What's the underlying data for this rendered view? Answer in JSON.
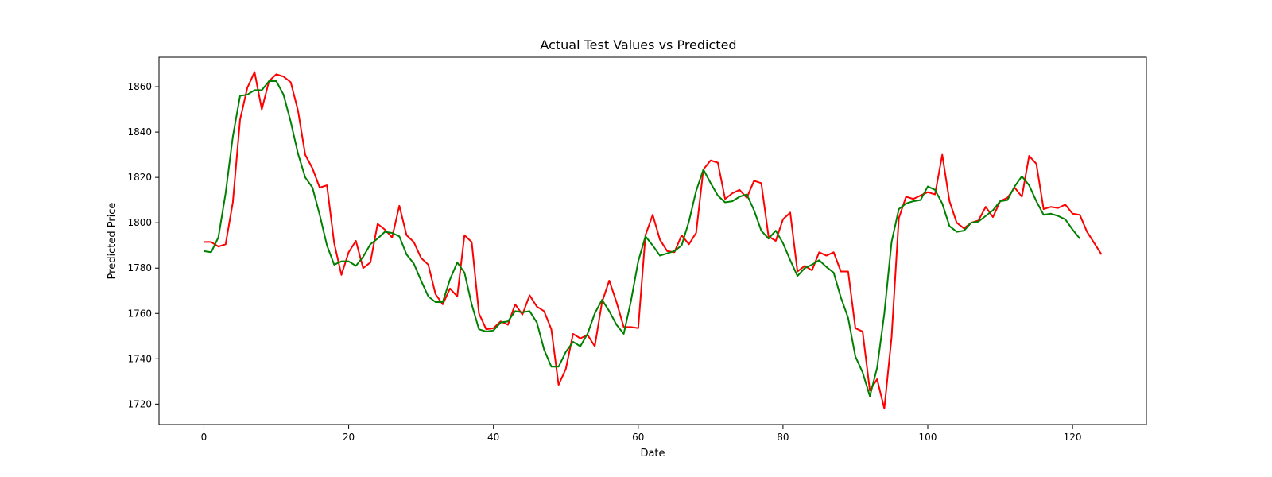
{
  "chart_data": {
    "type": "line",
    "title": "Actual Test Values vs Predicted",
    "xlabel": "Date",
    "ylabel": "Predicted Price",
    "xlim": [
      -6.2,
      130.2
    ],
    "ylim": [
      1711,
      1873
    ],
    "xticks": [
      0,
      20,
      40,
      60,
      80,
      100,
      120
    ],
    "yticks": [
      1720,
      1740,
      1760,
      1780,
      1800,
      1820,
      1840,
      1860
    ],
    "grid": false,
    "series": [
      {
        "color": "#ff0000",
        "x": [
          0,
          1,
          2,
          3,
          4,
          5,
          6,
          7,
          8,
          9,
          10,
          11,
          12,
          13,
          14,
          15,
          16,
          17,
          18,
          19,
          20,
          21,
          22,
          23,
          24,
          25,
          26,
          27,
          28,
          29,
          30,
          31,
          32,
          33,
          34,
          35,
          36,
          37,
          38,
          39,
          40,
          41,
          42,
          43,
          44,
          45,
          46,
          47,
          48,
          49,
          50,
          51,
          52,
          53,
          54,
          55,
          56,
          57,
          58,
          59,
          60,
          61,
          62,
          63,
          64,
          65,
          66,
          67,
          68,
          69,
          70,
          71,
          72,
          73,
          74,
          75,
          76,
          77,
          78,
          79,
          80,
          81,
          82,
          83,
          84,
          85,
          86,
          87,
          88,
          89,
          90,
          91,
          92,
          93,
          94,
          95,
          96,
          97,
          98,
          99,
          100,
          101,
          102,
          103,
          104,
          105,
          106,
          107,
          108,
          109,
          110,
          111,
          112,
          113,
          114,
          115,
          116,
          117,
          118,
          119,
          120,
          121,
          122,
          123,
          124
        ],
        "values": [
          1791.5,
          1791.5,
          1789.5,
          1790.5,
          1809,
          1845.5,
          1859.5,
          1866.5,
          1850,
          1862.5,
          1865.5,
          1864.5,
          1862,
          1849.5,
          1830,
          1824,
          1815.5,
          1816.5,
          1791,
          1777,
          1787,
          1792,
          1780,
          1782.5,
          1799.5,
          1797,
          1793.5,
          1807.5,
          1794.5,
          1791.5,
          1784.5,
          1781.5,
          1768.5,
          1764,
          1771,
          1767.5,
          1794.5,
          1791.5,
          1760,
          1753,
          1753.5,
          1756.5,
          1755,
          1764,
          1759.5,
          1768,
          1763,
          1761,
          1753,
          1728.5,
          1735.5,
          1751,
          1749,
          1750.5,
          1745.5,
          1765,
          1774.5,
          1765,
          1754,
          1754,
          1753.5,
          1794.5,
          1803.5,
          1792.5,
          1787.5,
          1787,
          1794.5,
          1790.5,
          1795.5,
          1823.5,
          1827.5,
          1826.5,
          1810.5,
          1813,
          1814.5,
          1811,
          1818.5,
          1817.5,
          1794,
          1792,
          1801.5,
          1804.5,
          1778.5,
          1781,
          1779,
          1787,
          1785.5,
          1787,
          1778.5,
          1778.5,
          1753.5,
          1752,
          1726,
          1731,
          1718,
          1749.5,
          1802,
          1811.5,
          1810.5,
          1812,
          1813.5,
          1812.5,
          1830,
          1809.5,
          1800,
          1797.5,
          1800,
          1801,
          1807,
          1802.5,
          1809.5,
          1811,
          1815.5,
          1811.5,
          1829.5,
          1826,
          1806,
          1807,
          1806.5,
          1808,
          1804,
          1803.5,
          1796,
          1791,
          1786
        ]
      },
      {
        "color": "#008000",
        "x": [
          0,
          1,
          2,
          3,
          4,
          5,
          6,
          7,
          8,
          9,
          10,
          11,
          12,
          13,
          14,
          15,
          16,
          17,
          18,
          19,
          20,
          21,
          22,
          23,
          24,
          25,
          26,
          27,
          28,
          29,
          30,
          31,
          32,
          33,
          34,
          35,
          36,
          37,
          38,
          39,
          40,
          41,
          42,
          43,
          44,
          45,
          46,
          47,
          48,
          49,
          50,
          51,
          52,
          53,
          54,
          55,
          56,
          57,
          58,
          59,
          60,
          61,
          62,
          63,
          64,
          65,
          66,
          67,
          68,
          69,
          70,
          71,
          72,
          73,
          74,
          75,
          76,
          77,
          78,
          79,
          80,
          81,
          82,
          83,
          84,
          85,
          86,
          87,
          88,
          89,
          90,
          91,
          92,
          93,
          94,
          95,
          96,
          97,
          98,
          99,
          100,
          101,
          102,
          103,
          104,
          105,
          106,
          107,
          108,
          109,
          110,
          111,
          112,
          113,
          114,
          115,
          116,
          117,
          118,
          119,
          120,
          121
        ],
        "values": [
          1787.5,
          1787,
          1793.5,
          1813,
          1838,
          1856,
          1856.5,
          1858.5,
          1858.5,
          1862.5,
          1862.5,
          1856.5,
          1844.5,
          1830.5,
          1820,
          1815.5,
          1803.5,
          1790,
          1781.5,
          1783,
          1783,
          1781,
          1785,
          1790.5,
          1793,
          1796,
          1795.5,
          1794,
          1786,
          1782,
          1774.5,
          1767.5,
          1765,
          1765,
          1775,
          1782.5,
          1778,
          1764,
          1753,
          1752,
          1752.5,
          1756,
          1756.5,
          1761,
          1760.5,
          1761,
          1756,
          1744,
          1736.5,
          1736.5,
          1743,
          1747.5,
          1745.5,
          1751,
          1760,
          1766,
          1761,
          1755,
          1751,
          1765.5,
          1783,
          1794,
          1790,
          1785.5,
          1786.5,
          1787.5,
          1790,
          1800.5,
          1814,
          1823.5,
          1817.5,
          1812,
          1809,
          1809.5,
          1811.5,
          1812.5,
          1805.5,
          1796.5,
          1793,
          1796.5,
          1791,
          1783.5,
          1776.5,
          1780,
          1781.5,
          1783.5,
          1780.5,
          1778,
          1767,
          1758,
          1741,
          1734,
          1723.5,
          1736,
          1760,
          1791.5,
          1806,
          1808.5,
          1809.5,
          1810,
          1816,
          1814.5,
          1808.5,
          1798.5,
          1796,
          1796.5,
          1800,
          1800.5,
          1803,
          1805.5,
          1809.5,
          1810,
          1816,
          1820.5,
          1816.5,
          1809.5,
          1803.5,
          1804,
          1803,
          1801.5,
          1797,
          1793
        ]
      }
    ]
  }
}
